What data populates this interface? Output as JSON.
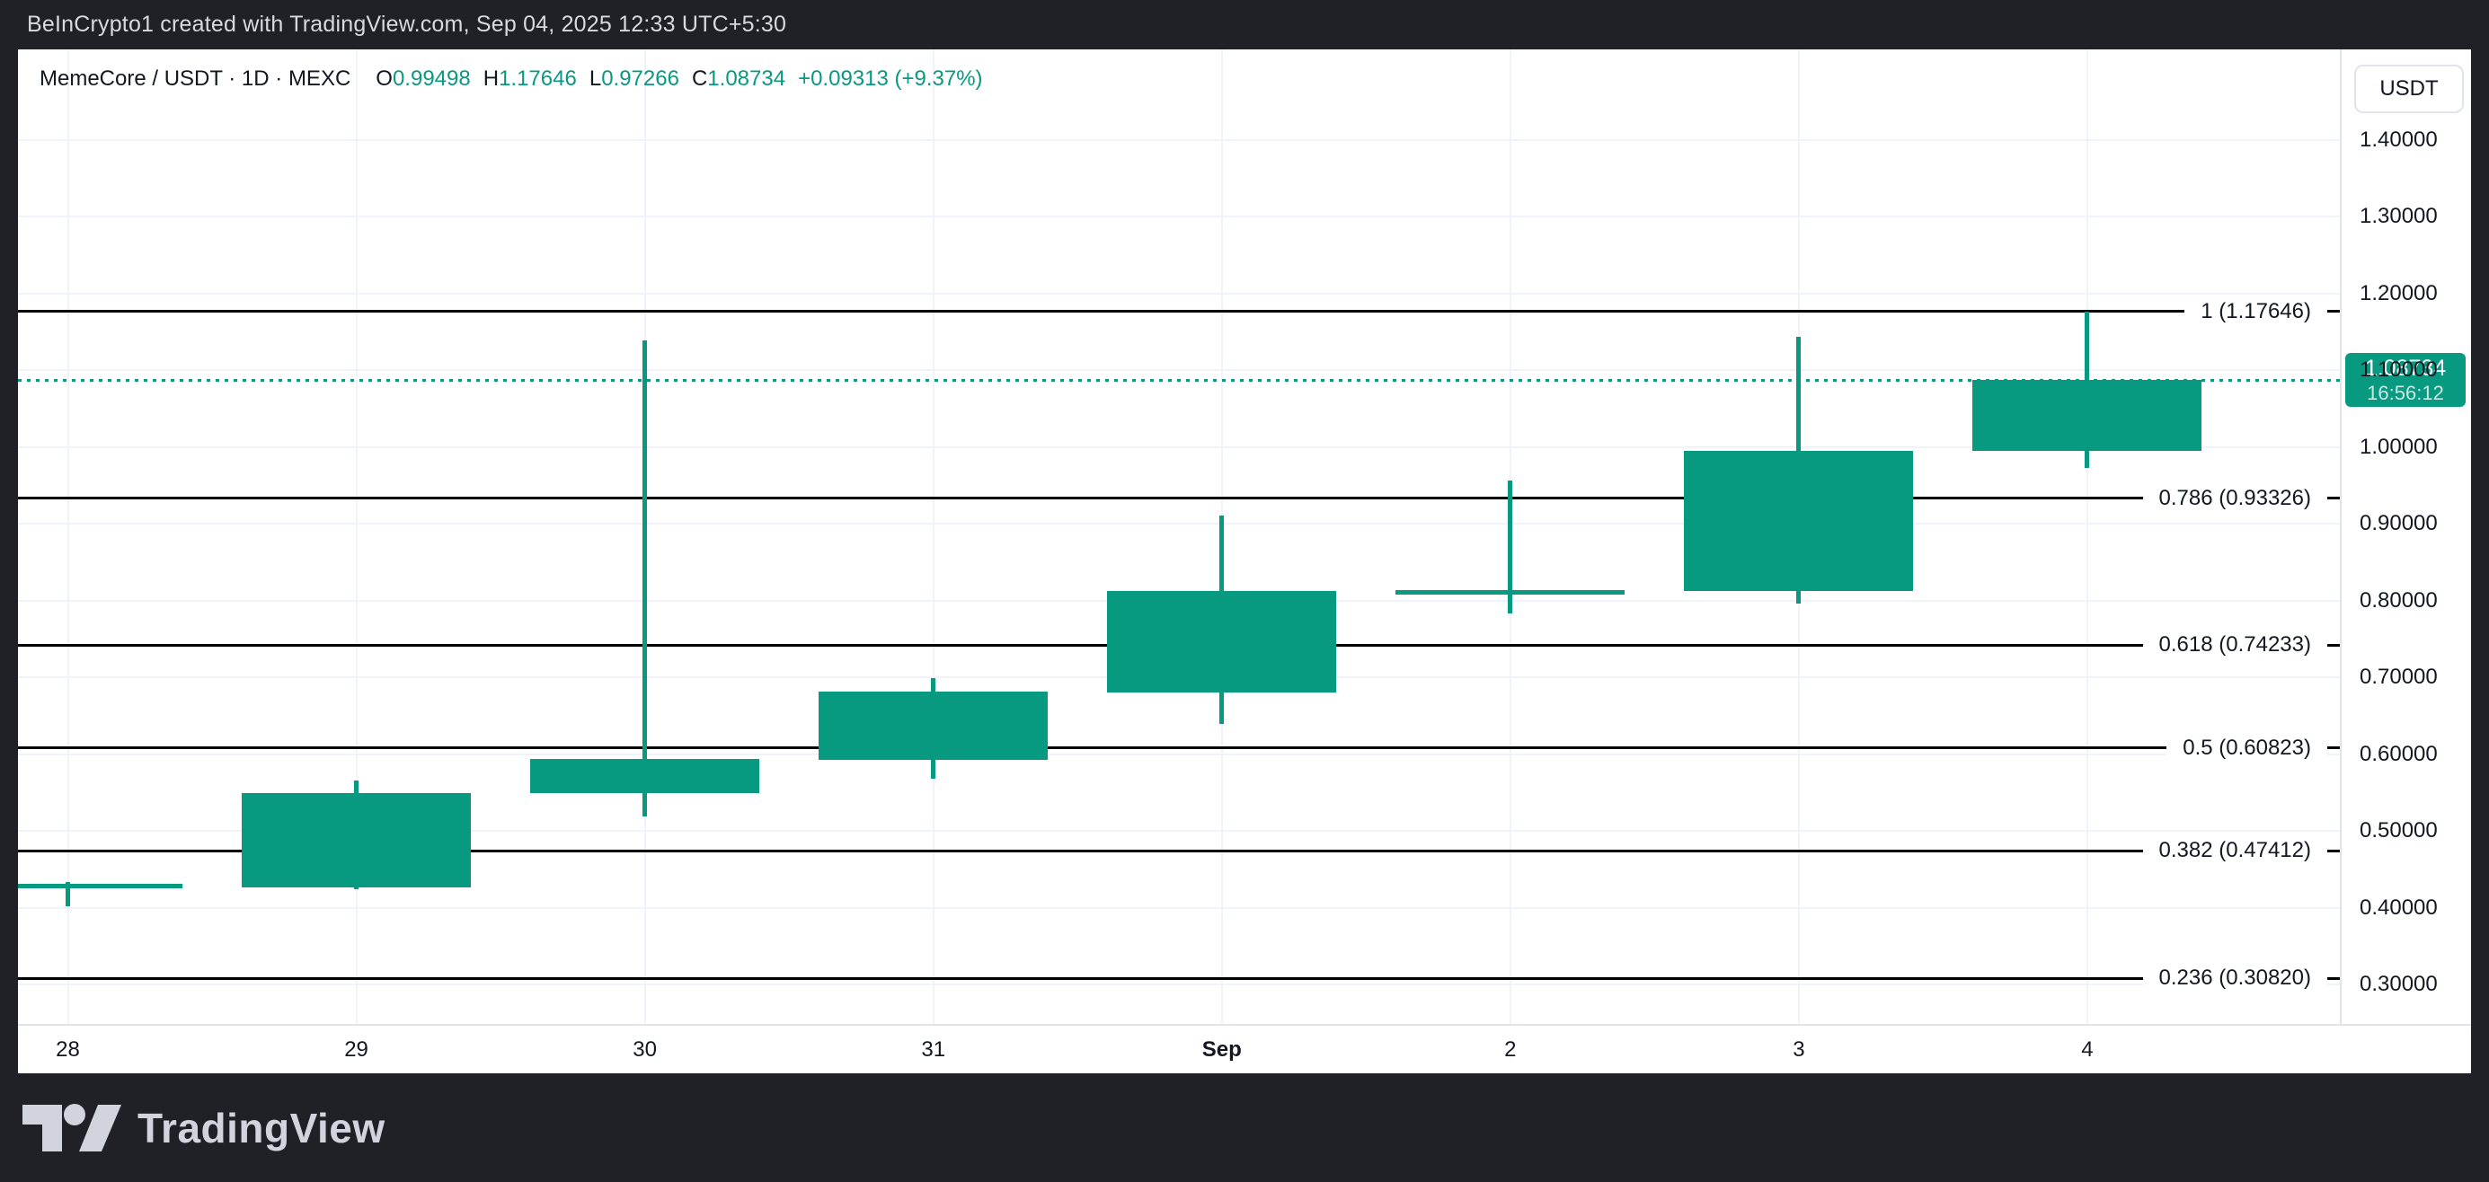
{
  "frame": {
    "title": "BeInCrypto1 created with TradingView.com, Sep 04, 2025 12:33 UTC+5:30",
    "watermark": "TradingView"
  },
  "header": {
    "symbol": "MemeCore / USDT · 1D · MEXC",
    "ohlc": [
      {
        "key": "O",
        "value": "0.99498"
      },
      {
        "key": "H",
        "value": "1.17646"
      },
      {
        "key": "L",
        "value": "0.97266"
      },
      {
        "key": "C",
        "value": "1.08734"
      }
    ],
    "change": "+0.09313 (+9.37%)",
    "currency_button": "USDT"
  },
  "price_scale": {
    "tick_labels": [
      "1.40000",
      "1.30000",
      "1.20000",
      "1.10000",
      "1.00000",
      "0.90000",
      "0.80000",
      "0.70000",
      "0.60000",
      "0.50000",
      "0.40000",
      "0.30000"
    ],
    "tick_values": [
      1.4,
      1.3,
      1.2,
      1.1,
      1.0,
      0.9,
      0.8,
      0.7,
      0.6,
      0.5,
      0.4,
      0.3
    ],
    "badge": {
      "price": "1.08734",
      "countdown": "16:56:12"
    }
  },
  "time_scale": {
    "labels": [
      {
        "text": "28",
        "bold": false
      },
      {
        "text": "29",
        "bold": false
      },
      {
        "text": "30",
        "bold": false
      },
      {
        "text": "31",
        "bold": false
      },
      {
        "text": "Sep",
        "bold": true
      },
      {
        "text": "2",
        "bold": false
      },
      {
        "text": "3",
        "bold": false
      },
      {
        "text": "4",
        "bold": false
      }
    ]
  },
  "colors": {
    "up": "#089981",
    "accent": "#089981",
    "fib_line": "#000000",
    "grid": "#f0f3fa",
    "axis_border": "#e0e3eb",
    "text": "#131722",
    "frame_bg": "#1f2126",
    "chart_bg": "#ffffff"
  },
  "chart_data": {
    "type": "candlestick",
    "title": "MemeCore / USDT",
    "interval": "1D",
    "exchange": "MEXC",
    "categories": [
      "Aug 28",
      "Aug 29",
      "Aug 30",
      "Aug 31",
      "Sep 1",
      "Sep 2",
      "Sep 3",
      "Sep 4"
    ],
    "candles": [
      {
        "date": "Aug 28",
        "open": 0.428,
        "high": 0.434,
        "low": 0.402,
        "close": 0.431
      },
      {
        "date": "Aug 29",
        "open": 0.427,
        "high": 0.566,
        "low": 0.424,
        "close": 0.549
      },
      {
        "date": "Aug 30",
        "open": 0.549,
        "high": 1.139,
        "low": 0.519,
        "close": 0.594
      },
      {
        "date": "Aug 31",
        "open": 0.593,
        "high": 0.699,
        "low": 0.568,
        "close": 0.682
      },
      {
        "date": "Sep 1",
        "open": 0.68,
        "high": 0.911,
        "low": 0.639,
        "close": 0.813
      },
      {
        "date": "Sep 2",
        "open": 0.812,
        "high": 0.956,
        "low": 0.783,
        "close": 0.814
      },
      {
        "date": "Sep 3",
        "open": 0.812,
        "high": 1.143,
        "low": 0.796,
        "close": 0.995
      },
      {
        "date": "Sep 4",
        "open": 0.99498,
        "high": 1.17646,
        "low": 0.97266,
        "close": 1.08734
      }
    ],
    "last_ohlc": {
      "open": 0.99498,
      "high": 1.17646,
      "low": 0.97266,
      "close": 1.08734,
      "change": 0.09313,
      "change_pct": 9.37
    },
    "current_price": 1.08734,
    "countdown": "16:56:12",
    "fib_retracement": [
      {
        "level": "1",
        "price": 1.17646,
        "label": "1 (1.17646)"
      },
      {
        "level": "0.786",
        "price": 0.93326,
        "label": "0.786 (0.93326)"
      },
      {
        "level": "0.618",
        "price": 0.74233,
        "label": "0.618 (0.74233)"
      },
      {
        "level": "0.5",
        "price": 0.60823,
        "label": "0.5 (0.60823)"
      },
      {
        "level": "0.382",
        "price": 0.47412,
        "label": "0.382 (0.47412)"
      },
      {
        "level": "0.236",
        "price": 0.3082,
        "label": "0.236 (0.30820)"
      }
    ],
    "ylim": [
      0.2488,
      1.5178
    ],
    "grid_step": 0.1,
    "grid": true,
    "legend_position": "top-left"
  }
}
